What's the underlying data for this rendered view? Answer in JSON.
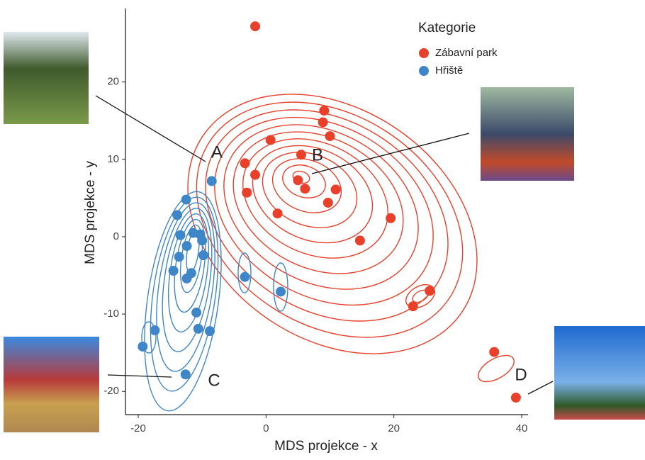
{
  "chart_data": {
    "type": "scatter",
    "xlabel": "MDS projekce - x",
    "ylabel": "MDS projekce - y",
    "xlim": [
      -22,
      41
    ],
    "ylim": [
      -23,
      29.5
    ],
    "xticks": [
      -20,
      0,
      20,
      40
    ],
    "yticks": [
      -20,
      -10,
      0,
      10,
      20
    ],
    "legend_title": "Kategorie",
    "legend_position": "top-right",
    "series": [
      {
        "name": "Zábavní park",
        "color": "#e8402a",
        "x": [
          -1.7,
          9.1,
          8.9,
          10.0,
          0.7,
          5.5,
          -3.3,
          -1.7,
          5.0,
          6.1,
          10.9,
          -3.0,
          9.7,
          1.8,
          19.5,
          14.7,
          25.6,
          23.0,
          35.7,
          39.1
        ],
        "values": [
          27.2,
          16.3,
          14.8,
          13.0,
          12.5,
          10.6,
          9.5,
          8.0,
          7.3,
          6.2,
          6.1,
          5.7,
          4.4,
          3.0,
          2.4,
          -0.5,
          -7.0,
          -9.0,
          -14.9,
          -20.8
        ]
      },
      {
        "name": "Hřiště",
        "color": "#3f86c8",
        "x": [
          -8.5,
          -12.5,
          -13.9,
          -11.4,
          -10.3,
          -13.4,
          -10.0,
          -12.4,
          -9.8,
          -13.6,
          -11.7,
          -14.5,
          -12.4,
          -3.3,
          2.3,
          -10.9,
          -10.6,
          -8.8,
          -17.4,
          -19.3,
          -12.6
        ],
        "values": [
          7.2,
          4.8,
          2.8,
          0.5,
          0.3,
          0.2,
          -0.5,
          -1.2,
          -2.4,
          -2.6,
          -4.7,
          -4.4,
          -5.4,
          -5.2,
          -7.1,
          -9.8,
          -11.9,
          -12.2,
          -12.1,
          -14.2,
          -17.8
        ]
      }
    ],
    "annotations": [
      "A",
      "B",
      "C",
      "D"
    ]
  }
}
